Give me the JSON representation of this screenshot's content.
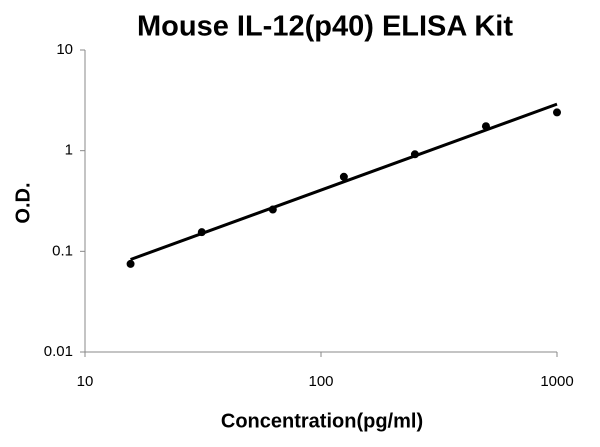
{
  "chart_data": {
    "type": "scatter",
    "title": "Mouse IL-12(p40) ELISA Kit",
    "xlabel": "Concentration(pg/ml)",
    "ylabel": "O.D.",
    "x": [
      15.6,
      31.25,
      62.5,
      125,
      250,
      500,
      1000
    ],
    "values": [
      0.075,
      0.155,
      0.26,
      0.55,
      0.92,
      1.75,
      2.4
    ],
    "color": "#000000",
    "trend_line": {
      "x": [
        15.6,
        1000
      ],
      "values": [
        0.083,
        2.9
      ]
    },
    "xscale": "log",
    "yscale": "log",
    "xlim": [
      10,
      1000
    ],
    "ylim": [
      0.01,
      10
    ],
    "xticks": [
      10,
      100,
      1000
    ],
    "yticks": [
      0.01,
      0.1,
      1,
      10
    ],
    "grid": false
  }
}
